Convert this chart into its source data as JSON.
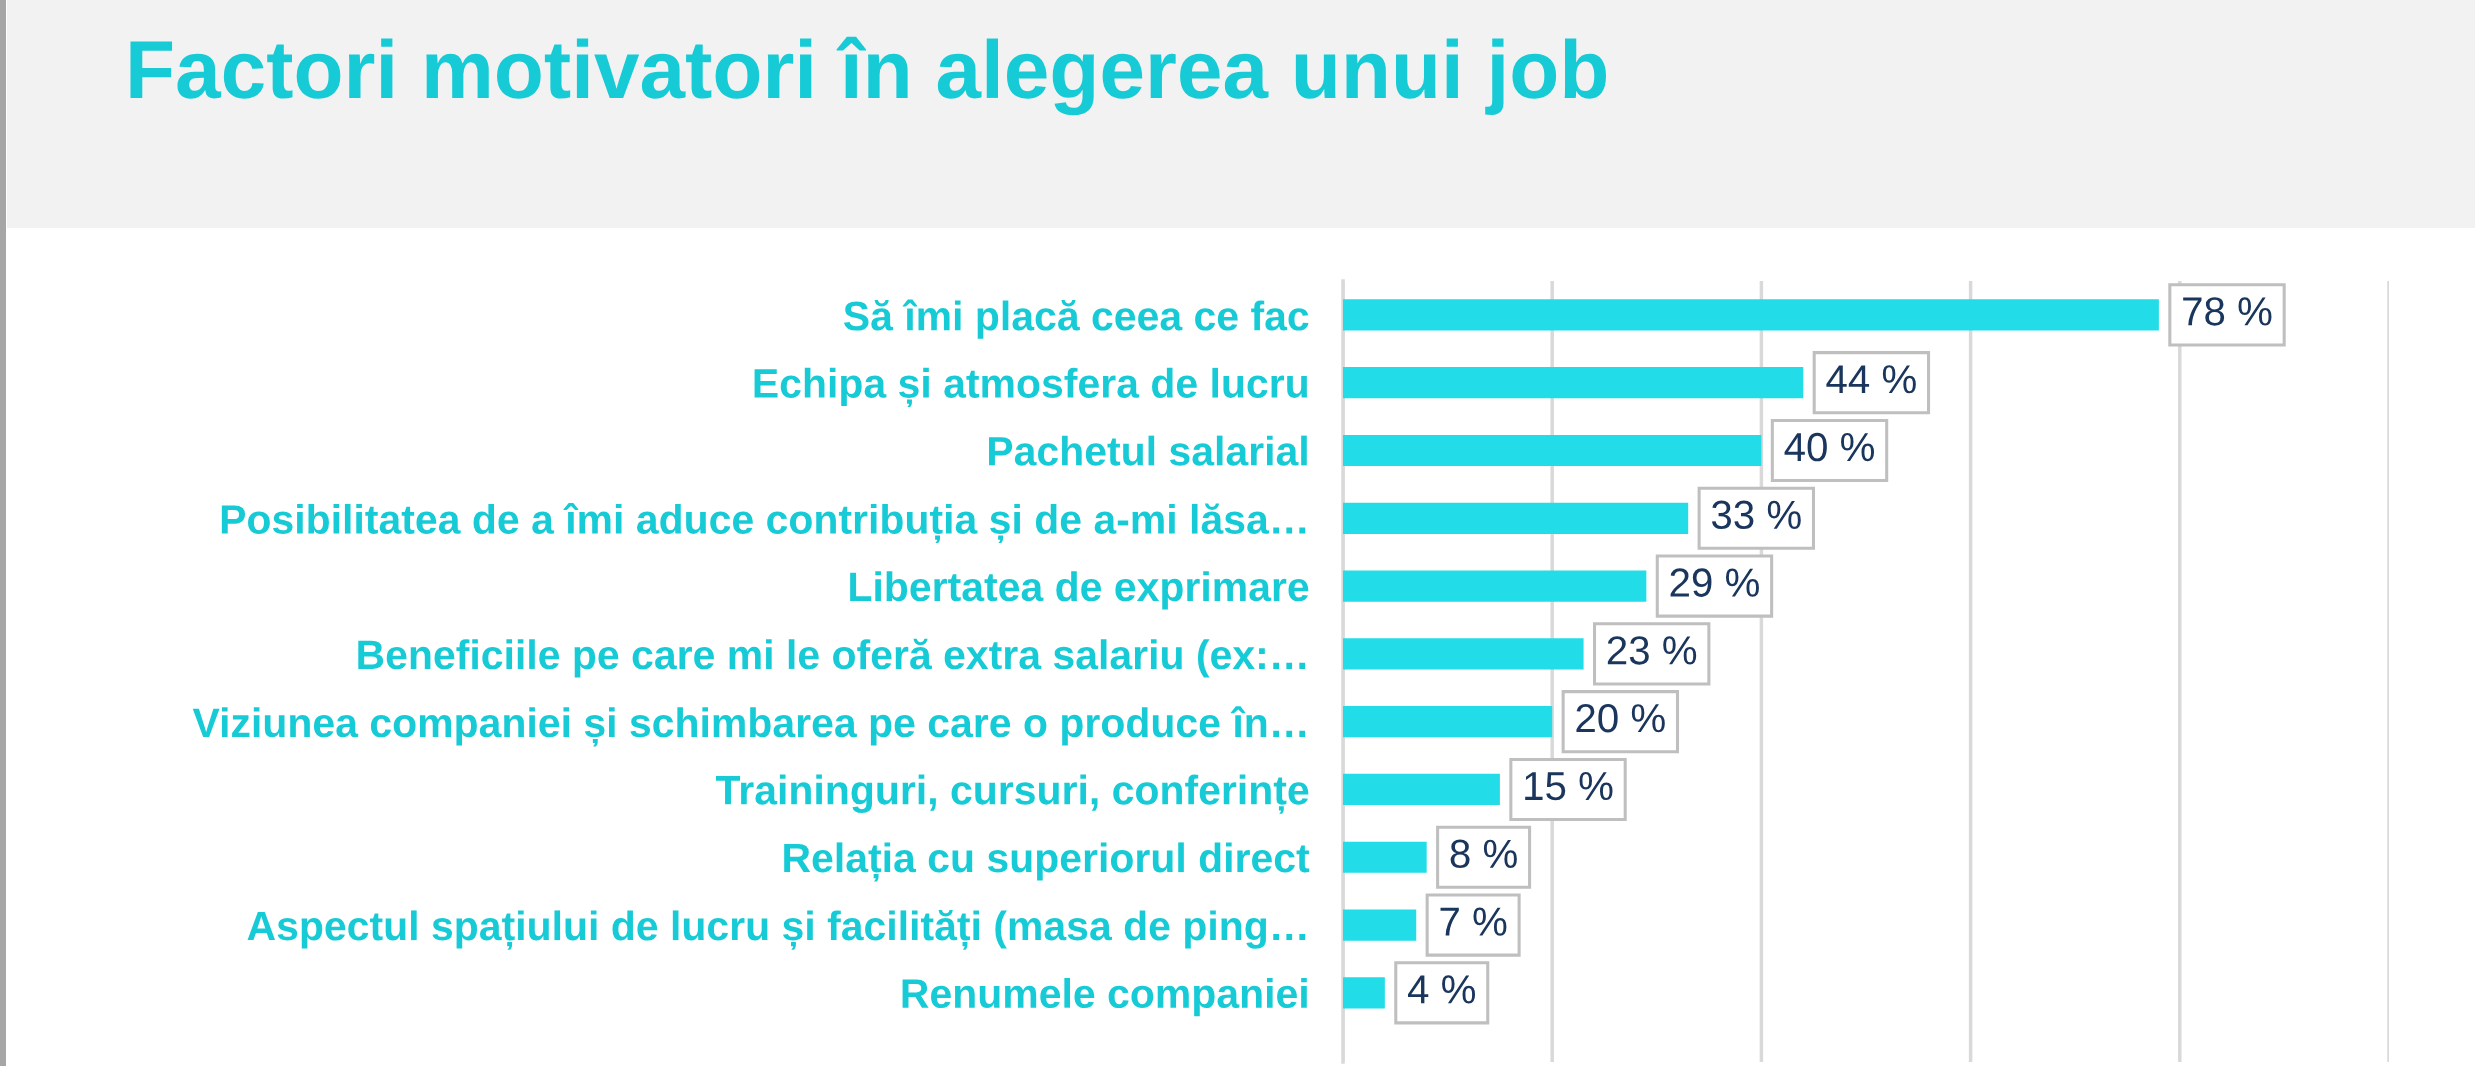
{
  "chart_data": {
    "type": "bar",
    "orientation": "horizontal",
    "title": "Factori motivatori în alegerea unui job",
    "categories": [
      "Să îmi placă ceea ce fac",
      "Echipa și atmosfera de lucru",
      "Pachetul salarial",
      "Posibilitatea de a îmi aduce contribuția și de a-mi lăsa…",
      "Libertatea de exprimare",
      "Beneficiile pe care mi le oferă extra salariu (ex:…",
      "Viziunea companiei și schimbarea pe care o produce în…",
      "Traininguri, cursuri, conferințe",
      "Relația cu superiorul direct",
      "Aspectul spațiului de lucru și facilități (masa de ping…",
      "Renumele companiei"
    ],
    "values": [
      78,
      44,
      40,
      33,
      29,
      23,
      20,
      15,
      8,
      7,
      4
    ],
    "value_labels": [
      "78 %",
      "44 %",
      "40 %",
      "33 %",
      "29 %",
      "23 %",
      "20 %",
      "15 %",
      "8 %",
      "7 %",
      "4 %"
    ],
    "color": "#22dde8",
    "xlim": [
      0,
      100
    ],
    "xticks": [
      {
        "value": 0,
        "label": null
      },
      {
        "value": 20,
        "label": null
      },
      {
        "value": 40,
        "label": null
      },
      {
        "value": 60,
        "label": null
      },
      {
        "value": 80,
        "label": null
      },
      {
        "value": 100,
        "label": null
      }
    ],
    "grid": "x",
    "tick_labels": "y"
  }
}
